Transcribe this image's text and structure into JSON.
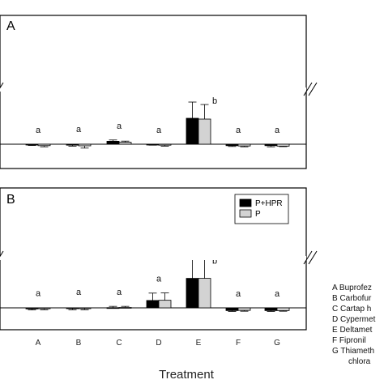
{
  "chart_data": [
    {
      "type": "bar",
      "panel": "A",
      "categories": [
        "A",
        "B",
        "C",
        "D",
        "E",
        "F",
        "G"
      ],
      "axis_break": true,
      "series": [
        {
          "name": "P+HPR",
          "color": "#000000",
          "values": [
            -0.5,
            -0.6,
            1.8,
            -0.3,
            16.0,
            -0.9,
            -0.9
          ],
          "errors": [
            0.3,
            0.6,
            0.8,
            0.3,
            10.0,
            0.5,
            0.7
          ]
        },
        {
          "name": "P",
          "color": "#d3d3d3",
          "values": [
            -0.9,
            -1.0,
            1.2,
            -0.6,
            15.5,
            -1.1,
            -1.2
          ],
          "errors": [
            0.7,
            1.4,
            0.7,
            0.6,
            9.0,
            0.5,
            0.3
          ]
        }
      ],
      "significance": [
        "a",
        "a",
        "a",
        "a",
        "b",
        "a",
        "a"
      ],
      "legend": false
    },
    {
      "type": "bar",
      "panel": "B",
      "categories": [
        "A",
        "B",
        "C",
        "D",
        "E",
        "F",
        "G"
      ],
      "axis_break": true,
      "series": [
        {
          "name": "P+HPR",
          "color": "#000000",
          "values": [
            -0.5,
            -0.1,
            0.1,
            3.5,
            14.0,
            -1.3,
            -1.3
          ],
          "errors": [
            0.5,
            0.8,
            0.6,
            3.5,
            9.0,
            0.4,
            0.4
          ]
        },
        {
          "name": "P",
          "color": "#d3d3d3",
          "values": [
            -0.4,
            -0.1,
            0.2,
            3.6,
            14.0,
            -1.2,
            -1.3
          ],
          "errors": [
            0.5,
            0.8,
            0.5,
            3.5,
            9.0,
            0.4,
            0.3
          ]
        }
      ],
      "significance": [
        "a",
        "a",
        "a",
        "a",
        "b",
        "a",
        "a"
      ],
      "legend": true,
      "legend_position": "top-right"
    }
  ],
  "xlabel": "Treatment",
  "treatment_key": [
    "A Buprofez",
    "B Carbofur",
    "C Cartap h",
    "D Cypermet",
    "E Deltamet",
    "F Fipronil",
    "G Thiameth",
    "chlora"
  ]
}
